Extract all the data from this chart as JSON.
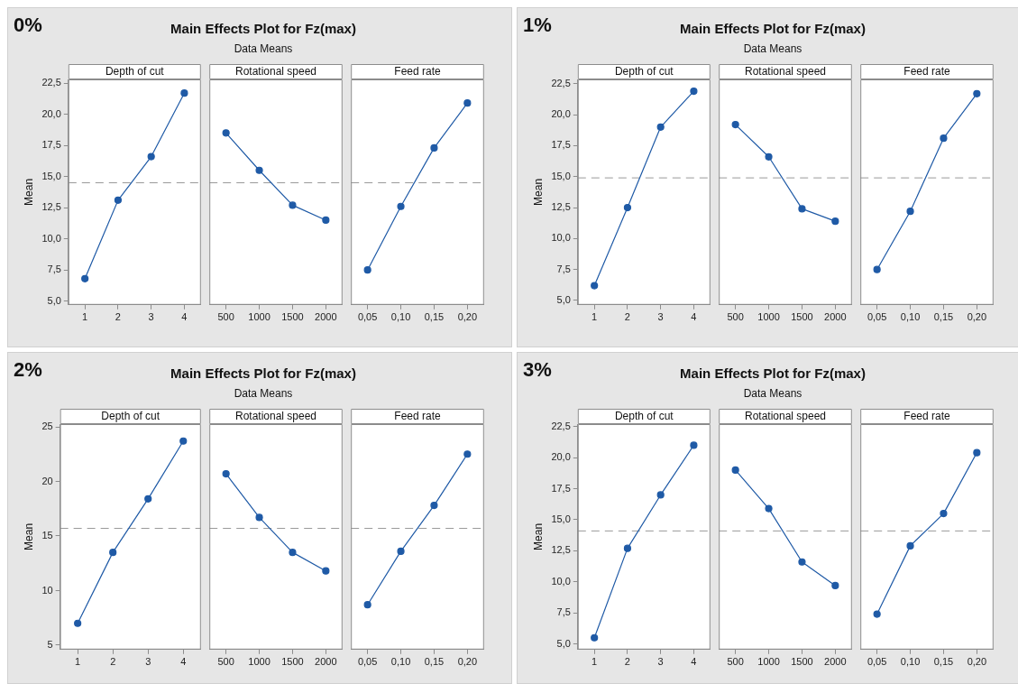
{
  "chart_data": [
    {
      "type": "other",
      "title": "Main Effects Plot for Fz(max)",
      "subtitle": "Data Means",
      "annotations": [
        "0%"
      ]
    },
    {
      "type": "line",
      "title": "Depth of cut",
      "ylabel": "Mean",
      "categories": [
        "1",
        "2",
        "3",
        "4"
      ],
      "values": [
        6.8,
        13.1,
        16.6,
        21.7
      ],
      "color": "#1f5aa6",
      "marker": "circle",
      "ylim": [
        4.7,
        22.8
      ],
      "yticks": [
        {
          "value": 5,
          "label": "5,0"
        },
        {
          "value": 7.5,
          "label": "7,5"
        },
        {
          "value": 10,
          "label": "10,0"
        },
        {
          "value": 12.5,
          "label": "12,5"
        },
        {
          "value": 15,
          "label": "15,0"
        },
        {
          "value": 17.5,
          "label": "17,5"
        },
        {
          "value": 20,
          "label": "20,0"
        },
        {
          "value": 22.5,
          "label": "22,5"
        }
      ],
      "ref_lines": [
        {
          "axis": "y",
          "value": 14.5,
          "color": "#999999",
          "line_style": "dashed"
        }
      ]
    },
    {
      "type": "line",
      "title": "Rotational speed",
      "categories": [
        "500",
        "1000",
        "1500",
        "2000"
      ],
      "values": [
        18.5,
        15.5,
        12.7,
        11.5
      ],
      "color": "#1f5aa6",
      "marker": "circle",
      "ylim": [
        4.7,
        22.8
      ],
      "tick_labels": "x",
      "ref_lines": [
        {
          "axis": "y",
          "value": 14.5,
          "color": "#999999",
          "line_style": "dashed"
        }
      ]
    },
    {
      "type": "line",
      "title": "Feed rate",
      "categories": [
        "0,05",
        "0,10",
        "0,15",
        "0,20"
      ],
      "values": [
        7.5,
        12.6,
        17.3,
        20.9
      ],
      "color": "#1f5aa6",
      "marker": "circle",
      "ylim": [
        4.7,
        22.8
      ],
      "tick_labels": "x",
      "ref_lines": [
        {
          "axis": "y",
          "value": 14.5,
          "color": "#999999",
          "line_style": "dashed"
        }
      ]
    },
    {
      "type": "other",
      "title": "Main Effects Plot for Fz(max)",
      "subtitle": "Data Means",
      "annotations": [
        "1%"
      ]
    },
    {
      "type": "line",
      "title": "Depth of cut",
      "ylabel": "Mean",
      "categories": [
        "1",
        "2",
        "3",
        "4"
      ],
      "values": [
        6.2,
        12.5,
        19.0,
        21.9
      ],
      "color": "#1f5aa6",
      "marker": "circle",
      "ylim": [
        4.65,
        22.85
      ],
      "yticks": [
        {
          "value": 5,
          "label": "5,0"
        },
        {
          "value": 7.5,
          "label": "7,5"
        },
        {
          "value": 10,
          "label": "10,0"
        },
        {
          "value": 12.5,
          "label": "12,5"
        },
        {
          "value": 15,
          "label": "15,0"
        },
        {
          "value": 17.5,
          "label": "17,5"
        },
        {
          "value": 20,
          "label": "20,0"
        },
        {
          "value": 22.5,
          "label": "22,5"
        }
      ],
      "ref_lines": [
        {
          "axis": "y",
          "value": 14.9,
          "color": "#999999",
          "line_style": "dashed"
        }
      ]
    },
    {
      "type": "line",
      "title": "Rotational speed",
      "categories": [
        "500",
        "1000",
        "1500",
        "2000"
      ],
      "values": [
        19.2,
        16.6,
        12.4,
        11.4
      ],
      "color": "#1f5aa6",
      "marker": "circle",
      "ylim": [
        4.65,
        22.85
      ],
      "tick_labels": "x",
      "ref_lines": [
        {
          "axis": "y",
          "value": 14.9,
          "color": "#999999",
          "line_style": "dashed"
        }
      ]
    },
    {
      "type": "line",
      "title": "Feed rate",
      "categories": [
        "0,05",
        "0,10",
        "0,15",
        "0,20"
      ],
      "values": [
        7.5,
        12.2,
        18.1,
        21.7
      ],
      "color": "#1f5aa6",
      "marker": "circle",
      "ylim": [
        4.65,
        22.85
      ],
      "tick_labels": "x",
      "ref_lines": [
        {
          "axis": "y",
          "value": 14.9,
          "color": "#999999",
          "line_style": "dashed"
        }
      ]
    },
    {
      "type": "other",
      "title": "Main Effects Plot for Fz(max)",
      "subtitle": "Data Means",
      "annotations": [
        "2%"
      ]
    },
    {
      "type": "line",
      "title": "Depth of cut",
      "ylabel": "Mean",
      "categories": [
        "1",
        "2",
        "3",
        "4"
      ],
      "values": [
        7.0,
        13.5,
        18.4,
        23.7
      ],
      "color": "#1f5aa6",
      "marker": "circle",
      "ylim": [
        4.6,
        25.25
      ],
      "yticks": [
        5,
        10,
        15,
        20,
        25
      ],
      "ref_lines": [
        {
          "axis": "y",
          "value": 15.7,
          "color": "#999999",
          "line_style": "dashed"
        }
      ]
    },
    {
      "type": "line",
      "title": "Rotational speed",
      "categories": [
        "500",
        "1000",
        "1500",
        "2000"
      ],
      "values": [
        20.7,
        16.7,
        13.5,
        11.8
      ],
      "color": "#1f5aa6",
      "marker": "circle",
      "ylim": [
        4.6,
        25.25
      ],
      "tick_labels": "x",
      "ref_lines": [
        {
          "axis": "y",
          "value": 15.7,
          "color": "#999999",
          "line_style": "dashed"
        }
      ]
    },
    {
      "type": "line",
      "title": "Feed rate",
      "categories": [
        "0,05",
        "0,10",
        "0,15",
        "0,20"
      ],
      "values": [
        8.7,
        13.6,
        17.8,
        22.5
      ],
      "color": "#1f5aa6",
      "marker": "circle",
      "ylim": [
        4.6,
        25.25
      ],
      "tick_labels": "x",
      "ref_lines": [
        {
          "axis": "y",
          "value": 15.7,
          "color": "#999999",
          "line_style": "dashed"
        }
      ]
    },
    {
      "type": "other",
      "title": "Main Effects Plot for Fz(max)",
      "subtitle": "Data Means",
      "annotations": [
        "3%"
      ]
    },
    {
      "type": "line",
      "title": "Depth of cut",
      "ylabel": "Mean",
      "categories": [
        "1",
        "2",
        "3",
        "4"
      ],
      "values": [
        5.5,
        12.7,
        17.0,
        21.0
      ],
      "color": "#1f5aa6",
      "marker": "circle",
      "ylim": [
        4.55,
        22.7
      ],
      "yticks": [
        {
          "value": 5,
          "label": "5,0"
        },
        {
          "value": 7.5,
          "label": "7,5"
        },
        {
          "value": 10,
          "label": "10,0"
        },
        {
          "value": 12.5,
          "label": "12,5"
        },
        {
          "value": 15,
          "label": "15,0"
        },
        {
          "value": 17.5,
          "label": "17,5"
        },
        {
          "value": 20,
          "label": "20,0"
        },
        {
          "value": 22.5,
          "label": "22,5"
        }
      ],
      "ref_lines": [
        {
          "axis": "y",
          "value": 14.1,
          "color": "#999999",
          "line_style": "dashed"
        }
      ]
    },
    {
      "type": "line",
      "title": "Rotational speed",
      "categories": [
        "500",
        "1000",
        "1500",
        "2000"
      ],
      "values": [
        19.0,
        15.9,
        11.6,
        9.7
      ],
      "color": "#1f5aa6",
      "marker": "circle",
      "ylim": [
        4.55,
        22.7
      ],
      "tick_labels": "x",
      "ref_lines": [
        {
          "axis": "y",
          "value": 14.1,
          "color": "#999999",
          "line_style": "dashed"
        }
      ]
    },
    {
      "type": "line",
      "title": "Feed rate",
      "categories": [
        "0,05",
        "0,10",
        "0,15",
        "0,20"
      ],
      "values": [
        7.4,
        12.9,
        15.5,
        20.4
      ],
      "color": "#1f5aa6",
      "marker": "circle",
      "ylim": [
        4.55,
        22.7
      ],
      "tick_labels": "x",
      "ref_lines": [
        {
          "axis": "y",
          "value": 14.1,
          "color": "#999999",
          "line_style": "dashed"
        }
      ]
    }
  ]
}
